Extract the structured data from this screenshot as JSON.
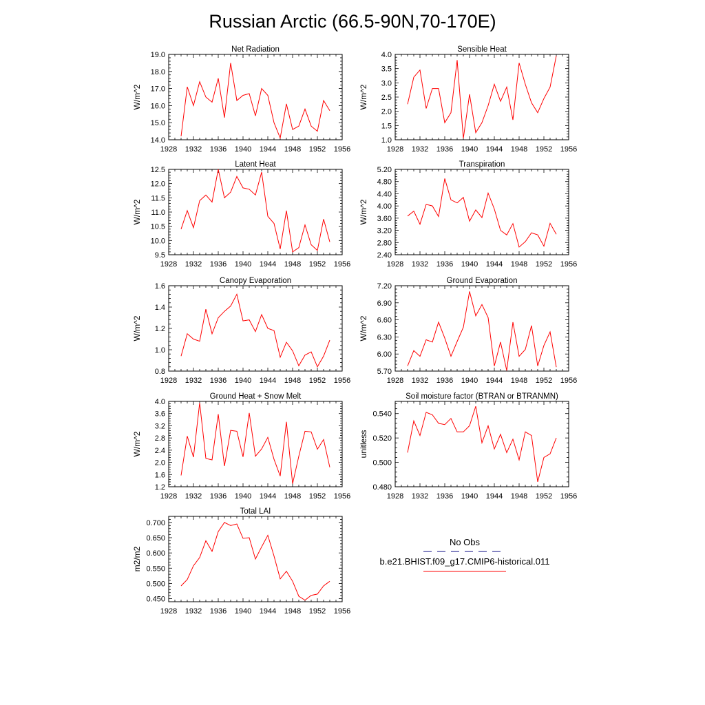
{
  "figure": {
    "title": "Russian Arctic (66.5-90N,70-170E)"
  },
  "legend": {
    "obs_label": "No Obs",
    "model_label": "b.e21.BHIST.f09_g17.CMIP6-historical.011",
    "obs_color": "#3b3b9e",
    "model_color": "#ff0000"
  },
  "chart_data": [
    {
      "type": "line",
      "title": "Net Radiation",
      "ylabel": "W/m^2",
      "xlim": [
        1928,
        1956
      ],
      "xticks": [
        "1928",
        "1932",
        "1936",
        "1940",
        "1944",
        "1948",
        "1952",
        "1956"
      ],
      "ylim": [
        14.0,
        19.0
      ],
      "yticks": [
        "14.0",
        "15.0",
        "16.0",
        "17.0",
        "18.0",
        "19.0"
      ],
      "series": [
        {
          "color": "#ff0000",
          "x": [
            1930,
            1931,
            1932,
            1933,
            1934,
            1935,
            1936,
            1937,
            1938,
            1939,
            1940,
            1941,
            1942,
            1943,
            1944,
            1945,
            1946,
            1947,
            1948,
            1949,
            1950,
            1951,
            1952,
            1953,
            1954
          ],
          "values": [
            14.2,
            17.1,
            16.0,
            17.4,
            16.5,
            16.2,
            17.6,
            15.3,
            18.5,
            16.3,
            16.6,
            16.7,
            15.4,
            17.0,
            16.6,
            15.0,
            14.1,
            16.1,
            14.6,
            14.8,
            15.8,
            14.8,
            14.5,
            16.3,
            15.7
          ]
        }
      ]
    },
    {
      "type": "line",
      "title": "Sensible Heat",
      "ylabel": "W/m^2",
      "xlim": [
        1928,
        1956
      ],
      "xticks": [
        "1928",
        "1932",
        "1936",
        "1940",
        "1944",
        "1948",
        "1952",
        "1956"
      ],
      "ylim": [
        1.0,
        4.0
      ],
      "yticks": [
        "1.0",
        "1.5",
        "2.0",
        "2.5",
        "3.0",
        "3.5",
        "4.0"
      ],
      "series": [
        {
          "color": "#ff0000",
          "x": [
            1930,
            1931,
            1932,
            1933,
            1934,
            1935,
            1936,
            1937,
            1938,
            1939,
            1940,
            1941,
            1942,
            1943,
            1944,
            1945,
            1946,
            1947,
            1948,
            1949,
            1950,
            1951,
            1952,
            1953,
            1954
          ],
          "values": [
            2.25,
            3.2,
            3.45,
            2.1,
            2.8,
            2.8,
            1.6,
            1.95,
            3.8,
            1.05,
            2.6,
            1.25,
            1.6,
            2.2,
            2.95,
            2.35,
            2.85,
            1.7,
            3.7,
            2.95,
            2.3,
            1.95,
            2.45,
            2.85,
            3.95
          ]
        }
      ]
    },
    {
      "type": "line",
      "title": "Latent Heat",
      "ylabel": "W/m^2",
      "xlim": [
        1928,
        1956
      ],
      "xticks": [
        "1928",
        "1932",
        "1936",
        "1940",
        "1944",
        "1948",
        "1952",
        "1956"
      ],
      "ylim": [
        9.5,
        12.5
      ],
      "yticks": [
        "9.5",
        "10.0",
        "10.5",
        "11.0",
        "11.5",
        "12.0",
        "12.5"
      ],
      "series": [
        {
          "color": "#ff0000",
          "x": [
            1930,
            1931,
            1932,
            1933,
            1934,
            1935,
            1936,
            1937,
            1938,
            1939,
            1940,
            1941,
            1942,
            1943,
            1944,
            1945,
            1946,
            1947,
            1948,
            1949,
            1950,
            1951,
            1952,
            1953,
            1954
          ],
          "values": [
            10.4,
            11.05,
            10.45,
            11.4,
            11.6,
            11.35,
            12.5,
            11.5,
            11.7,
            12.25,
            11.85,
            11.8,
            11.6,
            12.4,
            10.85,
            10.6,
            9.7,
            11.05,
            9.6,
            9.75,
            10.55,
            9.85,
            9.65,
            10.75,
            9.95
          ]
        }
      ]
    },
    {
      "type": "line",
      "title": "Transpiration",
      "ylabel": "W/m^2",
      "xlim": [
        1928,
        1956
      ],
      "xticks": [
        "1928",
        "1932",
        "1936",
        "1940",
        "1944",
        "1948",
        "1952",
        "1956"
      ],
      "ylim": [
        2.4,
        5.2
      ],
      "yticks": [
        "2.40",
        "2.80",
        "3.20",
        "3.60",
        "4.00",
        "4.40",
        "4.80",
        "5.20"
      ],
      "series": [
        {
          "color": "#ff0000",
          "x": [
            1930,
            1931,
            1932,
            1933,
            1934,
            1935,
            1936,
            1937,
            1938,
            1939,
            1940,
            1941,
            1942,
            1943,
            1944,
            1945,
            1946,
            1947,
            1948,
            1949,
            1950,
            1951,
            1952,
            1953,
            1954
          ],
          "values": [
            3.67,
            3.83,
            3.4,
            4.05,
            4.0,
            3.65,
            4.9,
            4.2,
            4.1,
            4.28,
            3.5,
            3.87,
            3.62,
            4.42,
            3.9,
            3.2,
            3.05,
            3.42,
            2.65,
            2.83,
            3.12,
            3.05,
            2.68,
            3.43,
            3.07
          ]
        }
      ]
    },
    {
      "type": "line",
      "title": "Canopy Evaporation",
      "ylabel": "W/m^2",
      "xlim": [
        1928,
        1956
      ],
      "xticks": [
        "1928",
        "1932",
        "1936",
        "1940",
        "1944",
        "1948",
        "1952",
        "1956"
      ],
      "ylim": [
        0.8,
        1.6
      ],
      "yticks": [
        "0.8",
        "1.0",
        "1.2",
        "1.4",
        "1.6"
      ],
      "series": [
        {
          "color": "#ff0000",
          "x": [
            1930,
            1931,
            1932,
            1933,
            1934,
            1935,
            1936,
            1937,
            1938,
            1939,
            1940,
            1941,
            1942,
            1943,
            1944,
            1945,
            1946,
            1947,
            1948,
            1949,
            1950,
            1951,
            1952,
            1953,
            1954
          ],
          "values": [
            0.94,
            1.15,
            1.1,
            1.08,
            1.38,
            1.15,
            1.3,
            1.36,
            1.41,
            1.52,
            1.27,
            1.28,
            1.17,
            1.33,
            1.2,
            1.18,
            0.93,
            1.07,
            0.99,
            0.85,
            0.95,
            0.98,
            0.84,
            0.94,
            1.09
          ]
        }
      ]
    },
    {
      "type": "line",
      "title": "Ground Evaporation",
      "ylabel": "W/m^2",
      "xlim": [
        1928,
        1956
      ],
      "xticks": [
        "1928",
        "1932",
        "1936",
        "1940",
        "1944",
        "1948",
        "1952",
        "1956"
      ],
      "ylim": [
        5.7,
        7.2
      ],
      "yticks": [
        "5.70",
        "6.00",
        "6.30",
        "6.60",
        "6.90",
        "7.20"
      ],
      "series": [
        {
          "color": "#ff0000",
          "x": [
            1930,
            1931,
            1932,
            1933,
            1934,
            1935,
            1936,
            1937,
            1938,
            1939,
            1940,
            1941,
            1942,
            1943,
            1944,
            1945,
            1946,
            1947,
            1948,
            1949,
            1950,
            1951,
            1952,
            1953,
            1954
          ],
          "values": [
            5.79,
            6.06,
            5.96,
            6.25,
            6.21,
            6.56,
            6.28,
            5.96,
            6.22,
            6.47,
            7.1,
            6.67,
            6.87,
            6.64,
            5.79,
            6.21,
            5.71,
            6.56,
            5.96,
            6.08,
            6.5,
            5.79,
            6.15,
            6.39,
            5.77
          ]
        }
      ]
    },
    {
      "type": "line",
      "title": "Ground Heat + Snow Melt",
      "ylabel": "W/m^2",
      "xlim": [
        1928,
        1956
      ],
      "xticks": [
        "1928",
        "1932",
        "1936",
        "1940",
        "1944",
        "1948",
        "1952",
        "1956"
      ],
      "ylim": [
        1.2,
        4.0
      ],
      "yticks": [
        "1.2",
        "1.6",
        "2.0",
        "2.4",
        "2.8",
        "3.2",
        "3.6",
        "4.0"
      ],
      "series": [
        {
          "color": "#ff0000",
          "x": [
            1930,
            1931,
            1932,
            1933,
            1934,
            1935,
            1936,
            1937,
            1938,
            1939,
            1940,
            1941,
            1942,
            1943,
            1944,
            1945,
            1946,
            1947,
            1948,
            1949,
            1950,
            1951,
            1952,
            1953,
            1954
          ],
          "values": [
            1.57,
            2.86,
            2.17,
            3.95,
            2.13,
            2.08,
            3.58,
            1.88,
            3.05,
            3.02,
            2.18,
            3.62,
            2.2,
            2.44,
            2.82,
            2.1,
            1.55,
            3.33,
            1.3,
            2.2,
            3.02,
            3.0,
            2.43,
            2.75,
            1.84
          ]
        }
      ]
    },
    {
      "type": "line",
      "title": "Soil moisture factor (BTRAN or BTRANMN)",
      "ylabel": "unitless",
      "xlim": [
        1928,
        1956
      ],
      "xticks": [
        "1928",
        "1932",
        "1936",
        "1940",
        "1944",
        "1948",
        "1952",
        "1956"
      ],
      "ylim": [
        0.48,
        0.55
      ],
      "yticks": [
        "0.480",
        "0.500",
        "0.520",
        "0.540"
      ],
      "series": [
        {
          "color": "#ff0000",
          "x": [
            1930,
            1931,
            1932,
            1933,
            1934,
            1935,
            1936,
            1937,
            1938,
            1939,
            1940,
            1941,
            1942,
            1943,
            1944,
            1945,
            1946,
            1947,
            1948,
            1949,
            1950,
            1951,
            1952,
            1953,
            1954
          ],
          "values": [
            0.508,
            0.534,
            0.522,
            0.541,
            0.539,
            0.532,
            0.531,
            0.536,
            0.525,
            0.525,
            0.53,
            0.546,
            0.516,
            0.53,
            0.511,
            0.523,
            0.508,
            0.519,
            0.502,
            0.525,
            0.522,
            0.484,
            0.504,
            0.507,
            0.52
          ]
        }
      ]
    },
    {
      "type": "line",
      "title": "Total LAI",
      "ylabel": "m2/m2",
      "xlim": [
        1928,
        1956
      ],
      "xticks": [
        "1928",
        "1932",
        "1936",
        "1940",
        "1944",
        "1948",
        "1952",
        "1956"
      ],
      "ylim": [
        0.44,
        0.72
      ],
      "yticks": [
        "0.450",
        "0.500",
        "0.550",
        "0.600",
        "0.650",
        "0.700"
      ],
      "series": [
        {
          "color": "#ff0000",
          "x": [
            1930,
            1931,
            1932,
            1933,
            1934,
            1935,
            1936,
            1937,
            1938,
            1939,
            1940,
            1941,
            1942,
            1943,
            1944,
            1945,
            1946,
            1947,
            1948,
            1949,
            1950,
            1951,
            1952,
            1953,
            1954
          ],
          "values": [
            0.492,
            0.513,
            0.558,
            0.585,
            0.64,
            0.605,
            0.67,
            0.7,
            0.69,
            0.695,
            0.648,
            0.65,
            0.58,
            0.62,
            0.658,
            0.59,
            0.515,
            0.54,
            0.507,
            0.458,
            0.445,
            0.461,
            0.465,
            0.492,
            0.507
          ]
        }
      ]
    }
  ]
}
